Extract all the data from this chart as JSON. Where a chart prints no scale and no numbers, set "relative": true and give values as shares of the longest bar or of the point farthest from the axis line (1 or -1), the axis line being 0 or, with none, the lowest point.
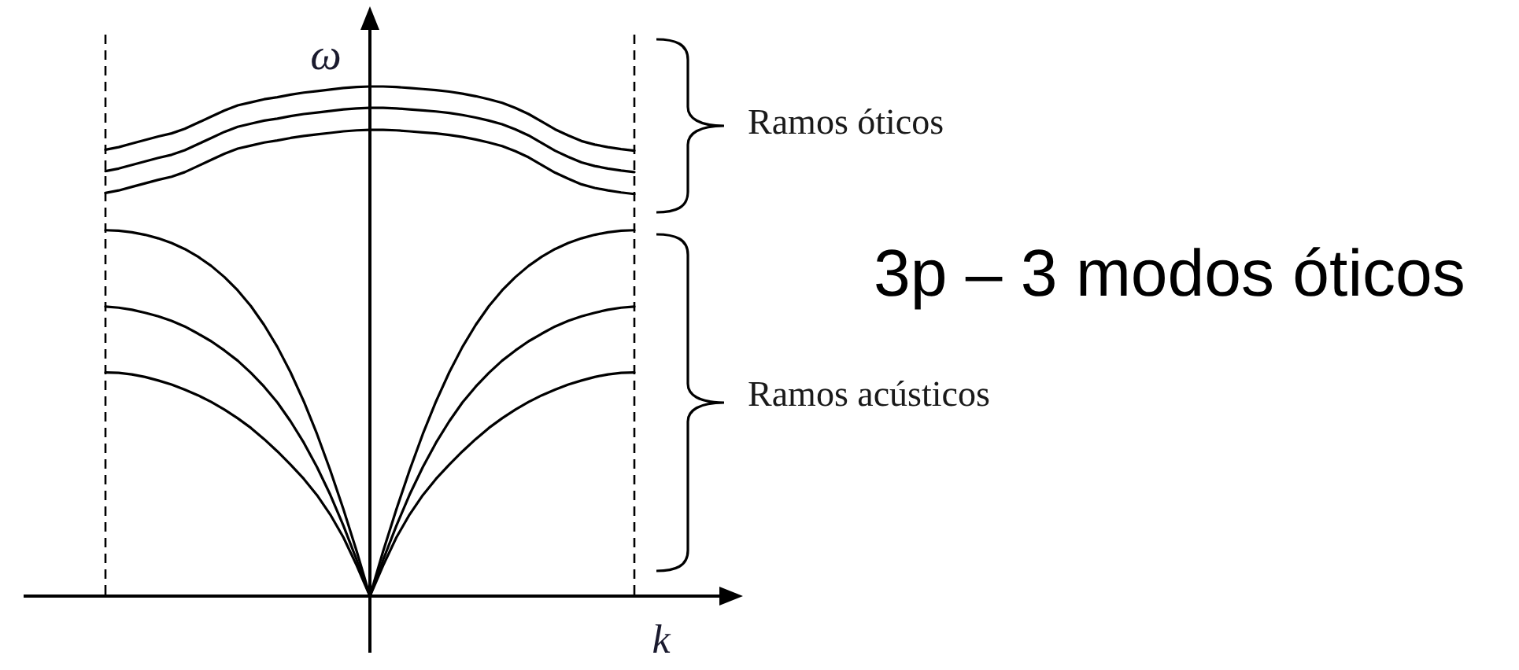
{
  "chart_data": {
    "type": "line",
    "xlabel": "k",
    "ylabel": "ω",
    "relative": true,
    "categories": [
      null,
      null,
      null,
      null,
      null,
      null,
      null,
      null,
      null,
      null,
      null,
      null,
      null,
      null,
      null,
      null,
      null,
      null,
      null,
      null,
      null,
      null,
      null,
      null,
      null,
      null,
      null,
      null,
      null,
      null,
      null,
      null,
      null,
      null,
      null,
      null,
      null,
      null,
      null,
      null,
      null
    ],
    "series": [
      {
        "color": "#000000",
        "values": [
          0.876,
          0.881,
          0.888,
          0.895,
          0.902,
          0.908,
          0.917,
          0.929,
          0.941,
          0.953,
          0.963,
          0.969,
          0.975,
          0.979,
          0.984,
          0.988,
          0.991,
          0.994,
          0.997,
          0.999,
          1.0,
          1.0,
          0.999,
          0.997,
          0.995,
          0.993,
          0.99,
          0.986,
          0.981,
          0.975,
          0.968,
          0.958,
          0.946,
          0.931,
          0.916,
          0.904,
          0.893,
          0.886,
          0.881,
          0.877,
          0.874
        ]
      },
      {
        "color": "#000000",
        "values": [
          0.834,
          0.839,
          0.846,
          0.853,
          0.86,
          0.866,
          0.875,
          0.887,
          0.899,
          0.911,
          0.921,
          0.927,
          0.933,
          0.937,
          0.942,
          0.946,
          0.949,
          0.952,
          0.955,
          0.957,
          0.958,
          0.958,
          0.957,
          0.955,
          0.953,
          0.951,
          0.948,
          0.944,
          0.939,
          0.933,
          0.926,
          0.916,
          0.904,
          0.889,
          0.874,
          0.862,
          0.851,
          0.844,
          0.839,
          0.835,
          0.832
        ]
      },
      {
        "color": "#000000",
        "values": [
          0.791,
          0.796,
          0.803,
          0.81,
          0.817,
          0.823,
          0.832,
          0.844,
          0.856,
          0.868,
          0.878,
          0.884,
          0.89,
          0.894,
          0.899,
          0.903,
          0.906,
          0.909,
          0.912,
          0.914,
          0.915,
          0.915,
          0.914,
          0.912,
          0.91,
          0.908,
          0.905,
          0.901,
          0.896,
          0.89,
          0.883,
          0.873,
          0.861,
          0.846,
          0.831,
          0.819,
          0.808,
          0.801,
          0.796,
          0.792,
          0.789
        ]
      },
      {
        "color": "#000000",
        "values": [
          0.718,
          0.717,
          0.714,
          0.709,
          0.702,
          0.693,
          0.681,
          0.666,
          0.648,
          0.626,
          0.6,
          0.569,
          0.532,
          0.489,
          0.439,
          0.382,
          0.318,
          0.247,
          0.17,
          0.088,
          0,
          0.088,
          0.17,
          0.247,
          0.318,
          0.382,
          0.439,
          0.489,
          0.532,
          0.569,
          0.6,
          0.626,
          0.648,
          0.666,
          0.681,
          0.693,
          0.702,
          0.709,
          0.714,
          0.717,
          0.718
        ]
      },
      {
        "color": "#000000",
        "values": [
          0.568,
          0.566,
          0.562,
          0.556,
          0.549,
          0.54,
          0.529,
          0.515,
          0.5,
          0.482,
          0.462,
          0.438,
          0.411,
          0.38,
          0.343,
          0.301,
          0.253,
          0.199,
          0.138,
          0.071,
          0,
          0.071,
          0.138,
          0.199,
          0.253,
          0.301,
          0.343,
          0.38,
          0.411,
          0.438,
          0.462,
          0.482,
          0.5,
          0.515,
          0.529,
          0.54,
          0.549,
          0.556,
          0.562,
          0.566,
          0.568
        ]
      },
      {
        "color": "#000000",
        "values": [
          0.439,
          0.438,
          0.435,
          0.43,
          0.423,
          0.415,
          0.405,
          0.394,
          0.381,
          0.366,
          0.349,
          0.33,
          0.308,
          0.284,
          0.258,
          0.23,
          0.198,
          0.16,
          0.115,
          0.06,
          0,
          0.06,
          0.115,
          0.16,
          0.198,
          0.23,
          0.258,
          0.284,
          0.308,
          0.33,
          0.349,
          0.366,
          0.381,
          0.394,
          0.405,
          0.415,
          0.423,
          0.43,
          0.435,
          0.438,
          0.439
        ]
      }
    ],
    "annotations": [
      "Ramos óticos",
      "Ramos acústicos",
      "3p – 3 modos óticos"
    ]
  }
}
